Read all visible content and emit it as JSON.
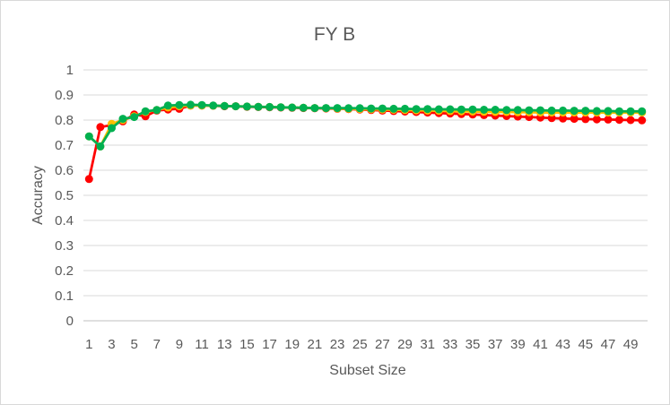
{
  "chart_data": {
    "type": "line",
    "title": "FY B",
    "xlabel": "Subset Size",
    "ylabel": "Accuracy",
    "ylim": [
      0,
      1
    ],
    "yticks": [
      "0",
      "0.1",
      "0.2",
      "0.3",
      "0.4",
      "0.5",
      "0.6",
      "0.7",
      "0.8",
      "0.9",
      "1"
    ],
    "x": [
      1,
      2,
      3,
      4,
      5,
      6,
      7,
      8,
      9,
      10,
      11,
      12,
      13,
      14,
      15,
      16,
      17,
      18,
      19,
      20,
      21,
      22,
      23,
      24,
      25,
      26,
      27,
      28,
      29,
      30,
      31,
      32,
      33,
      34,
      35,
      36,
      37,
      38,
      39,
      40,
      41,
      42,
      43,
      44,
      45,
      46,
      47,
      48,
      49,
      50
    ],
    "xticks": [
      "1",
      "3",
      "5",
      "7",
      "9",
      "11",
      "13",
      "15",
      "17",
      "19",
      "21",
      "23",
      "25",
      "27",
      "29",
      "31",
      "33",
      "35",
      "37",
      "39",
      "41",
      "43",
      "45",
      "47",
      "49"
    ],
    "grid": true,
    "legend": "none",
    "series": [
      {
        "color": "#ff0000",
        "values": [
          0.565,
          0.772,
          0.78,
          0.795,
          0.822,
          0.815,
          0.838,
          0.842,
          0.845,
          0.858,
          0.858,
          0.857,
          0.855,
          0.855,
          0.853,
          0.852,
          0.851,
          0.85,
          0.849,
          0.848,
          0.847,
          0.846,
          0.845,
          0.844,
          0.842,
          0.84,
          0.838,
          0.836,
          0.834,
          0.832,
          0.83,
          0.828,
          0.826,
          0.824,
          0.822,
          0.82,
          0.818,
          0.816,
          0.814,
          0.812,
          0.81,
          0.808,
          0.806,
          0.805,
          0.804,
          0.803,
          0.802,
          0.801,
          0.8,
          0.799
        ]
      },
      {
        "color": "#ffc000",
        "values": [
          0.735,
          0.695,
          0.785,
          0.8,
          0.815,
          0.832,
          0.84,
          0.85,
          0.855,
          0.858,
          0.858,
          0.857,
          0.856,
          0.855,
          0.854,
          0.853,
          0.852,
          0.851,
          0.85,
          0.849,
          0.848,
          0.847,
          0.846,
          0.845,
          0.844,
          0.843,
          0.842,
          0.841,
          0.84,
          0.839,
          0.838,
          0.837,
          0.836,
          0.835,
          0.834,
          0.833,
          0.832,
          0.832,
          0.831,
          0.831,
          0.83,
          0.83,
          0.83,
          0.83,
          0.83,
          0.83,
          0.83,
          0.83,
          0.83,
          0.83
        ]
      },
      {
        "color": "#00b050",
        "values": [
          0.735,
          0.695,
          0.768,
          0.805,
          0.812,
          0.835,
          0.84,
          0.858,
          0.86,
          0.861,
          0.86,
          0.858,
          0.856,
          0.855,
          0.854,
          0.853,
          0.852,
          0.851,
          0.85,
          0.849,
          0.848,
          0.848,
          0.848,
          0.847,
          0.847,
          0.846,
          0.846,
          0.845,
          0.845,
          0.844,
          0.844,
          0.843,
          0.843,
          0.842,
          0.842,
          0.841,
          0.841,
          0.84,
          0.84,
          0.839,
          0.839,
          0.838,
          0.838,
          0.837,
          0.837,
          0.836,
          0.836,
          0.835,
          0.835,
          0.835
        ]
      }
    ]
  }
}
